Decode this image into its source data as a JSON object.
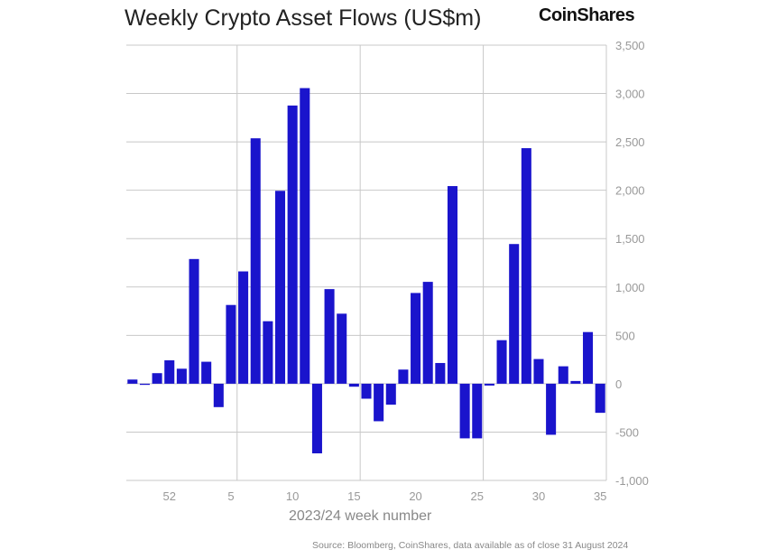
{
  "chart_data": {
    "type": "bar",
    "title": "Weekly Crypto Asset Flows (US$m)",
    "brand": "CoinShares",
    "xlabel": "2023/24 week number",
    "ylabel": "",
    "source": "Source: Bloomberg, CoinShares, data available as of close 31 August 2024",
    "ylim": [
      -1000,
      3500
    ],
    "yticks": [
      -1000,
      -500,
      0,
      500,
      1000,
      1500,
      2000,
      2500,
      3000,
      3500
    ],
    "ytick_labels": [
      "-1,000",
      "-500",
      "0",
      "500",
      "1,000",
      "1,500",
      "2,000",
      "2,500",
      "3,000",
      "3,500"
    ],
    "xtick_labels": [
      "52",
      "5",
      "10",
      "15",
      "20",
      "25",
      "30",
      "35"
    ],
    "categories": [
      "49",
      "50",
      "51",
      "52",
      "1",
      "2",
      "3",
      "4",
      "5",
      "6",
      "7",
      "8",
      "9",
      "10",
      "11",
      "12",
      "13",
      "14",
      "15",
      "16",
      "17",
      "18",
      "19",
      "20",
      "21",
      "22",
      "23",
      "24",
      "25",
      "26",
      "27",
      "28",
      "29",
      "30",
      "31",
      "32",
      "33",
      "34",
      "35"
    ],
    "values": [
      43,
      -12,
      109,
      242,
      155,
      1289,
      227,
      -242,
      814,
      1161,
      2537,
      646,
      1994,
      2876,
      3056,
      -720,
      978,
      724,
      -31,
      -155,
      -388,
      -217,
      146,
      938,
      1053,
      214,
      2043,
      -565,
      -565,
      -19,
      450,
      1444,
      2435,
      255,
      -528,
      180,
      28,
      534,
      -301
    ],
    "bar_color": "#1a14cc",
    "grid": true,
    "legend": "none"
  }
}
